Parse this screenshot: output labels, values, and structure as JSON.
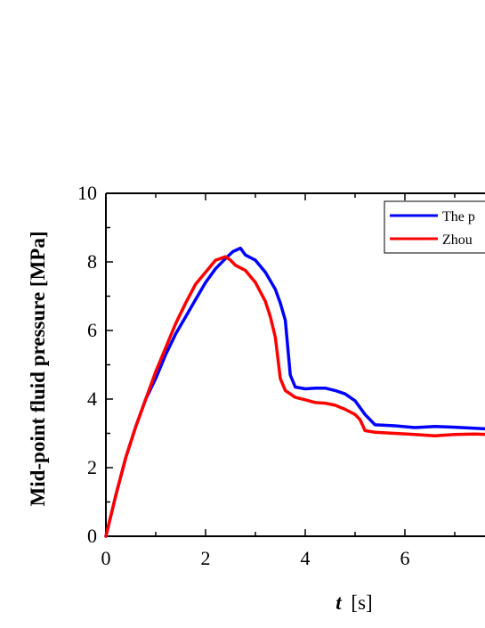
{
  "chart_data": {
    "type": "line",
    "xlabel": {
      "italic": "t",
      "unit": "[s]"
    },
    "ylabel": "Mid-point fluid pressure [MPa]",
    "xlim": [
      0,
      7.8
    ],
    "ylim": [
      0,
      10
    ],
    "xticks": [
      "0",
      "2",
      "4",
      "6"
    ],
    "yticks": [
      "0",
      "2",
      "4",
      "6",
      "8",
      "10"
    ],
    "grid": false,
    "legend_position": "top-right",
    "series": [
      {
        "name": "The p",
        "color": "#0000ff",
        "points": [
          [
            0,
            0
          ],
          [
            0.2,
            1.2
          ],
          [
            0.4,
            2.3
          ],
          [
            0.6,
            3.2
          ],
          [
            0.8,
            4.0
          ],
          [
            1.0,
            4.6
          ],
          [
            1.2,
            5.3
          ],
          [
            1.4,
            5.9
          ],
          [
            1.6,
            6.4
          ],
          [
            1.8,
            6.9
          ],
          [
            2.0,
            7.4
          ],
          [
            2.2,
            7.8
          ],
          [
            2.4,
            8.1
          ],
          [
            2.55,
            8.3
          ],
          [
            2.7,
            8.4
          ],
          [
            2.8,
            8.2
          ],
          [
            3.0,
            8.05
          ],
          [
            3.2,
            7.7
          ],
          [
            3.4,
            7.2
          ],
          [
            3.5,
            6.8
          ],
          [
            3.6,
            6.3
          ],
          [
            3.7,
            4.7
          ],
          [
            3.8,
            4.35
          ],
          [
            4.0,
            4.3
          ],
          [
            4.2,
            4.32
          ],
          [
            4.4,
            4.32
          ],
          [
            4.6,
            4.25
          ],
          [
            4.8,
            4.15
          ],
          [
            5.0,
            3.95
          ],
          [
            5.2,
            3.55
          ],
          [
            5.4,
            3.25
          ],
          [
            5.8,
            3.22
          ],
          [
            6.2,
            3.17
          ],
          [
            6.6,
            3.2
          ],
          [
            7.0,
            3.18
          ],
          [
            7.4,
            3.15
          ],
          [
            7.8,
            3.12
          ]
        ]
      },
      {
        "name": "Zhou",
        "color": "#ff0000",
        "points": [
          [
            0,
            0
          ],
          [
            0.2,
            1.2
          ],
          [
            0.4,
            2.3
          ],
          [
            0.6,
            3.2
          ],
          [
            0.8,
            4.0
          ],
          [
            1.0,
            4.8
          ],
          [
            1.2,
            5.5
          ],
          [
            1.4,
            6.2
          ],
          [
            1.6,
            6.8
          ],
          [
            1.8,
            7.35
          ],
          [
            2.0,
            7.7
          ],
          [
            2.2,
            8.05
          ],
          [
            2.4,
            8.15
          ],
          [
            2.5,
            8.05
          ],
          [
            2.6,
            7.9
          ],
          [
            2.8,
            7.75
          ],
          [
            3.0,
            7.4
          ],
          [
            3.2,
            6.85
          ],
          [
            3.3,
            6.4
          ],
          [
            3.4,
            5.8
          ],
          [
            3.5,
            4.6
          ],
          [
            3.6,
            4.25
          ],
          [
            3.8,
            4.05
          ],
          [
            4.0,
            3.98
          ],
          [
            4.2,
            3.9
          ],
          [
            4.4,
            3.88
          ],
          [
            4.6,
            3.82
          ],
          [
            4.8,
            3.7
          ],
          [
            5.0,
            3.55
          ],
          [
            5.1,
            3.4
          ],
          [
            5.2,
            3.08
          ],
          [
            5.4,
            3.03
          ],
          [
            5.8,
            3.0
          ],
          [
            6.2,
            2.97
          ],
          [
            6.6,
            2.93
          ],
          [
            7.0,
            2.97
          ],
          [
            7.4,
            2.98
          ],
          [
            7.8,
            2.96
          ]
        ]
      }
    ]
  }
}
